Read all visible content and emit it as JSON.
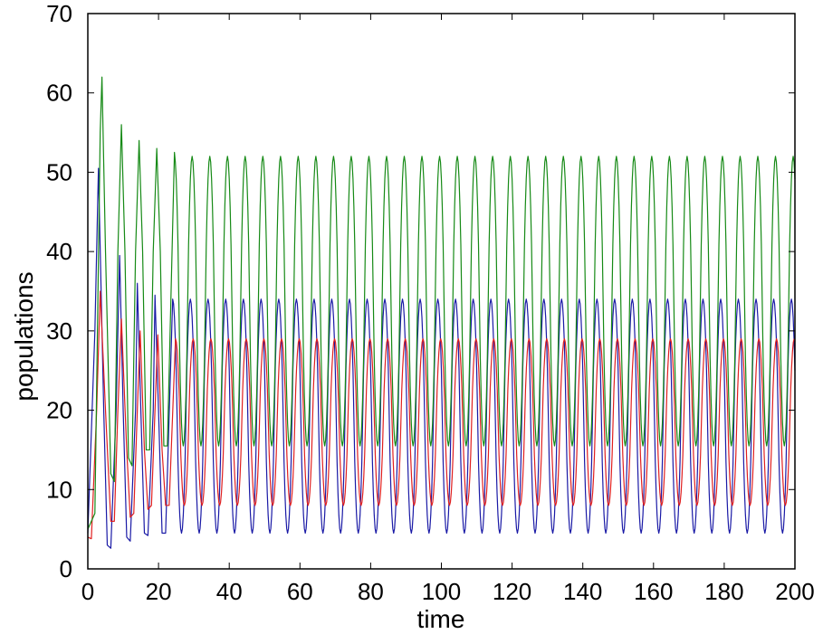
{
  "chart_data": {
    "type": "line",
    "title": "",
    "xlabel": "time",
    "ylabel": "populations",
    "xlim": [
      0,
      200
    ],
    "ylim": [
      0,
      70
    ],
    "xticks": [
      0,
      20,
      40,
      60,
      80,
      100,
      120,
      140,
      160,
      180,
      200
    ],
    "yticks": [
      0,
      10,
      20,
      30,
      40,
      50,
      60,
      70
    ],
    "grid": false,
    "legend": "none",
    "series": [
      {
        "color": "#1a1aa6",
        "period": 5,
        "points": [
          [
            0,
            4.5
          ],
          [
            2,
            30
          ],
          [
            3,
            50.5
          ],
          [
            4.5,
            20
          ],
          [
            5.5,
            3.0
          ],
          [
            6.5,
            2.6
          ],
          [
            8,
            20
          ],
          [
            9,
            39.5
          ],
          [
            10,
            20
          ],
          [
            11,
            4
          ],
          [
            12,
            3.5
          ],
          [
            13.5,
            20
          ],
          [
            14,
            36
          ],
          [
            15,
            20
          ],
          [
            16,
            4.5
          ],
          [
            17,
            4.2
          ],
          [
            18.5,
            20
          ],
          [
            19,
            34.5
          ],
          [
            20,
            20
          ],
          [
            21,
            4.5
          ],
          [
            22,
            4.5
          ],
          [
            24,
            34
          ]
        ],
        "steady_state": {
          "max": 34,
          "min": 4.5,
          "peak_phase": 4.0
        }
      },
      {
        "color": "#e02020",
        "period": 5,
        "points": [
          [
            0,
            4
          ],
          [
            1,
            3.8
          ],
          [
            2.5,
            20
          ],
          [
            3.5,
            35
          ],
          [
            5,
            20
          ],
          [
            6.5,
            6
          ],
          [
            7.5,
            6
          ],
          [
            8.5,
            20
          ],
          [
            9.5,
            31.5
          ],
          [
            11,
            15
          ],
          [
            12,
            6.5
          ],
          [
            13,
            7
          ],
          [
            14,
            20
          ],
          [
            14.8,
            30
          ],
          [
            16,
            15
          ],
          [
            17,
            7.5
          ],
          [
            18,
            8
          ],
          [
            19,
            20
          ],
          [
            19.8,
            29.5
          ],
          [
            21,
            15
          ],
          [
            22,
            8
          ],
          [
            23,
            8
          ],
          [
            24.8,
            29
          ]
        ],
        "steady_state": {
          "max": 29,
          "min": 8,
          "peak_phase": 4.8
        }
      },
      {
        "color": "#168a16",
        "period": 5,
        "points": [
          [
            0,
            5
          ],
          [
            2,
            7
          ],
          [
            3.5,
            55
          ],
          [
            4,
            62
          ],
          [
            5,
            40
          ],
          [
            6.5,
            12
          ],
          [
            7.5,
            11
          ],
          [
            8.5,
            40
          ],
          [
            9.5,
            56
          ],
          [
            10.5,
            40
          ],
          [
            11.5,
            14
          ],
          [
            12.5,
            13
          ],
          [
            13.5,
            40
          ],
          [
            14.5,
            54
          ],
          [
            15.5,
            40
          ],
          [
            16.5,
            15
          ],
          [
            17.5,
            15
          ],
          [
            18.5,
            40
          ],
          [
            19.5,
            53
          ],
          [
            20.5,
            40
          ],
          [
            21.5,
            15.5
          ],
          [
            22.5,
            15.5
          ],
          [
            24.5,
            52.5
          ]
        ],
        "steady_state": {
          "max": 52,
          "min": 15.5,
          "peak_phase": 4.5
        }
      }
    ]
  }
}
